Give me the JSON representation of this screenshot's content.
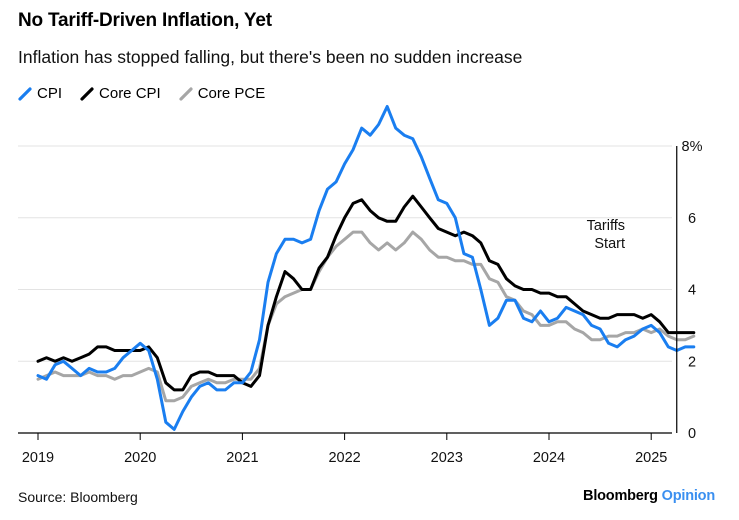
{
  "header": {
    "title": "No Tariff-Driven Inflation, Yet",
    "subtitle": "Inflation has stopped falling, but there's been no sudden increase"
  },
  "footer": {
    "source": "Source: Bloomberg",
    "brand_main": "Bloomberg",
    "brand_accent": "Opinion"
  },
  "colors": {
    "cpi": "#1a7ef0",
    "core_cpi": "#000000",
    "core_pce": "#a6a6a6",
    "grid": "#e3e3e3",
    "brand_accent": "#3a8ff0"
  },
  "chart_data": {
    "type": "line",
    "title": "No Tariff-Driven Inflation, Yet",
    "subtitle": "Inflation has stopped falling, but there's been no sudden increase",
    "xlabel": "",
    "ylabel": "",
    "x_range": [
      2019.0,
      2025.5
    ],
    "ylim": [
      0,
      8
    ],
    "x_ticks": [
      2019,
      2020,
      2021,
      2022,
      2023,
      2024,
      2025
    ],
    "x_tick_labels": [
      "2019",
      "2020",
      "2021",
      "2022",
      "2023",
      "2024",
      "2025"
    ],
    "y_ticks": [
      0,
      2,
      4,
      6,
      8
    ],
    "y_tick_labels": [
      "0",
      "2",
      "4",
      "6",
      "8%"
    ],
    "grid": true,
    "legend": "top-left",
    "annotation": {
      "x": 2025.25,
      "lines": [
        "Tariffs",
        "Start"
      ]
    },
    "series": [
      {
        "name": "CPI",
        "key": "cpi",
        "x": [
          2019.0,
          2019.083,
          2019.167,
          2019.25,
          2019.333,
          2019.417,
          2019.5,
          2019.583,
          2019.667,
          2019.75,
          2019.833,
          2019.917,
          2020.0,
          2020.083,
          2020.167,
          2020.25,
          2020.333,
          2020.417,
          2020.5,
          2020.583,
          2020.667,
          2020.75,
          2020.833,
          2020.917,
          2021.0,
          2021.083,
          2021.167,
          2021.25,
          2021.333,
          2021.417,
          2021.5,
          2021.583,
          2021.667,
          2021.75,
          2021.833,
          2021.917,
          2022.0,
          2022.083,
          2022.167,
          2022.25,
          2022.333,
          2022.417,
          2022.5,
          2022.583,
          2022.667,
          2022.75,
          2022.833,
          2022.917,
          2023.0,
          2023.083,
          2023.167,
          2023.25,
          2023.333,
          2023.417,
          2023.5,
          2023.583,
          2023.667,
          2023.75,
          2023.833,
          2023.917,
          2024.0,
          2024.083,
          2024.167,
          2024.25,
          2024.333,
          2024.417,
          2024.5,
          2024.583,
          2024.667,
          2024.75,
          2024.833,
          2024.917,
          2025.0,
          2025.083,
          2025.167,
          2025.25,
          2025.333,
          2025.417
        ],
        "values": [
          1.6,
          1.5,
          1.9,
          2.0,
          1.8,
          1.6,
          1.8,
          1.7,
          1.7,
          1.8,
          2.1,
          2.3,
          2.5,
          2.3,
          1.5,
          0.3,
          0.1,
          0.6,
          1.0,
          1.3,
          1.4,
          1.2,
          1.2,
          1.4,
          1.4,
          1.7,
          2.6,
          4.2,
          5.0,
          5.4,
          5.4,
          5.3,
          5.4,
          6.2,
          6.8,
          7.0,
          7.5,
          7.9,
          8.5,
          8.3,
          8.6,
          9.1,
          8.5,
          8.3,
          8.2,
          7.7,
          7.1,
          6.5,
          6.4,
          6.0,
          5.0,
          4.9,
          4.0,
          3.0,
          3.2,
          3.7,
          3.7,
          3.2,
          3.1,
          3.4,
          3.1,
          3.2,
          3.5,
          3.4,
          3.3,
          3.0,
          2.9,
          2.5,
          2.4,
          2.6,
          2.7,
          2.9,
          3.0,
          2.8,
          2.4,
          2.3,
          2.4,
          2.4
        ]
      },
      {
        "name": "Core CPI",
        "key": "core_cpi",
        "x": [
          2019.0,
          2019.083,
          2019.167,
          2019.25,
          2019.333,
          2019.417,
          2019.5,
          2019.583,
          2019.667,
          2019.75,
          2019.833,
          2019.917,
          2020.0,
          2020.083,
          2020.167,
          2020.25,
          2020.333,
          2020.417,
          2020.5,
          2020.583,
          2020.667,
          2020.75,
          2020.833,
          2020.917,
          2021.0,
          2021.083,
          2021.167,
          2021.25,
          2021.333,
          2021.417,
          2021.5,
          2021.583,
          2021.667,
          2021.75,
          2021.833,
          2021.917,
          2022.0,
          2022.083,
          2022.167,
          2022.25,
          2022.333,
          2022.417,
          2022.5,
          2022.583,
          2022.667,
          2022.75,
          2022.833,
          2022.917,
          2023.0,
          2023.083,
          2023.167,
          2023.25,
          2023.333,
          2023.417,
          2023.5,
          2023.583,
          2023.667,
          2023.75,
          2023.833,
          2023.917,
          2024.0,
          2024.083,
          2024.167,
          2024.25,
          2024.333,
          2024.417,
          2024.5,
          2024.583,
          2024.667,
          2024.75,
          2024.833,
          2024.917,
          2025.0,
          2025.083,
          2025.167,
          2025.25,
          2025.333,
          2025.417
        ],
        "values": [
          2.0,
          2.1,
          2.0,
          2.1,
          2.0,
          2.1,
          2.2,
          2.4,
          2.4,
          2.3,
          2.3,
          2.3,
          2.3,
          2.4,
          2.1,
          1.4,
          1.2,
          1.2,
          1.6,
          1.7,
          1.7,
          1.6,
          1.6,
          1.6,
          1.4,
          1.3,
          1.6,
          3.0,
          3.8,
          4.5,
          4.3,
          4.0,
          4.0,
          4.6,
          4.9,
          5.5,
          6.0,
          6.4,
          6.5,
          6.2,
          6.0,
          5.9,
          5.9,
          6.3,
          6.6,
          6.3,
          6.0,
          5.7,
          5.6,
          5.5,
          5.6,
          5.5,
          5.3,
          4.8,
          4.7,
          4.3,
          4.1,
          4.0,
          4.0,
          3.9,
          3.9,
          3.8,
          3.8,
          3.6,
          3.4,
          3.3,
          3.2,
          3.2,
          3.3,
          3.3,
          3.3,
          3.2,
          3.3,
          3.1,
          2.8,
          2.8,
          2.8,
          2.8
        ]
      },
      {
        "name": "Core PCE",
        "key": "core_pce",
        "x": [
          2019.0,
          2019.083,
          2019.167,
          2019.25,
          2019.333,
          2019.417,
          2019.5,
          2019.583,
          2019.667,
          2019.75,
          2019.833,
          2019.917,
          2020.0,
          2020.083,
          2020.167,
          2020.25,
          2020.333,
          2020.417,
          2020.5,
          2020.583,
          2020.667,
          2020.75,
          2020.833,
          2020.917,
          2021.0,
          2021.083,
          2021.167,
          2021.25,
          2021.333,
          2021.417,
          2021.5,
          2021.583,
          2021.667,
          2021.75,
          2021.833,
          2021.917,
          2022.0,
          2022.083,
          2022.167,
          2022.25,
          2022.333,
          2022.417,
          2022.5,
          2022.583,
          2022.667,
          2022.75,
          2022.833,
          2022.917,
          2023.0,
          2023.083,
          2023.167,
          2023.25,
          2023.333,
          2023.417,
          2023.5,
          2023.583,
          2023.667,
          2023.75,
          2023.833,
          2023.917,
          2024.0,
          2024.083,
          2024.167,
          2024.25,
          2024.333,
          2024.417,
          2024.5,
          2024.583,
          2024.667,
          2024.75,
          2024.833,
          2024.917,
          2025.0,
          2025.083,
          2025.167,
          2025.25,
          2025.333,
          2025.417
        ],
        "values": [
          1.5,
          1.6,
          1.7,
          1.6,
          1.6,
          1.6,
          1.7,
          1.6,
          1.6,
          1.5,
          1.6,
          1.6,
          1.7,
          1.8,
          1.7,
          0.9,
          0.9,
          1.0,
          1.3,
          1.4,
          1.5,
          1.4,
          1.4,
          1.5,
          1.5,
          1.5,
          1.8,
          3.0,
          3.6,
          3.8,
          3.9,
          4.0,
          4.0,
          4.5,
          4.9,
          5.2,
          5.4,
          5.6,
          5.6,
          5.3,
          5.1,
          5.3,
          5.1,
          5.3,
          5.6,
          5.4,
          5.1,
          4.9,
          4.9,
          4.8,
          4.8,
          4.7,
          4.7,
          4.3,
          4.2,
          3.8,
          3.7,
          3.4,
          3.3,
          3.0,
          3.0,
          3.1,
          3.1,
          2.9,
          2.8,
          2.6,
          2.6,
          2.7,
          2.7,
          2.8,
          2.8,
          2.9,
          2.8,
          2.9,
          2.7,
          2.6,
          2.6,
          2.7
        ]
      }
    ]
  }
}
